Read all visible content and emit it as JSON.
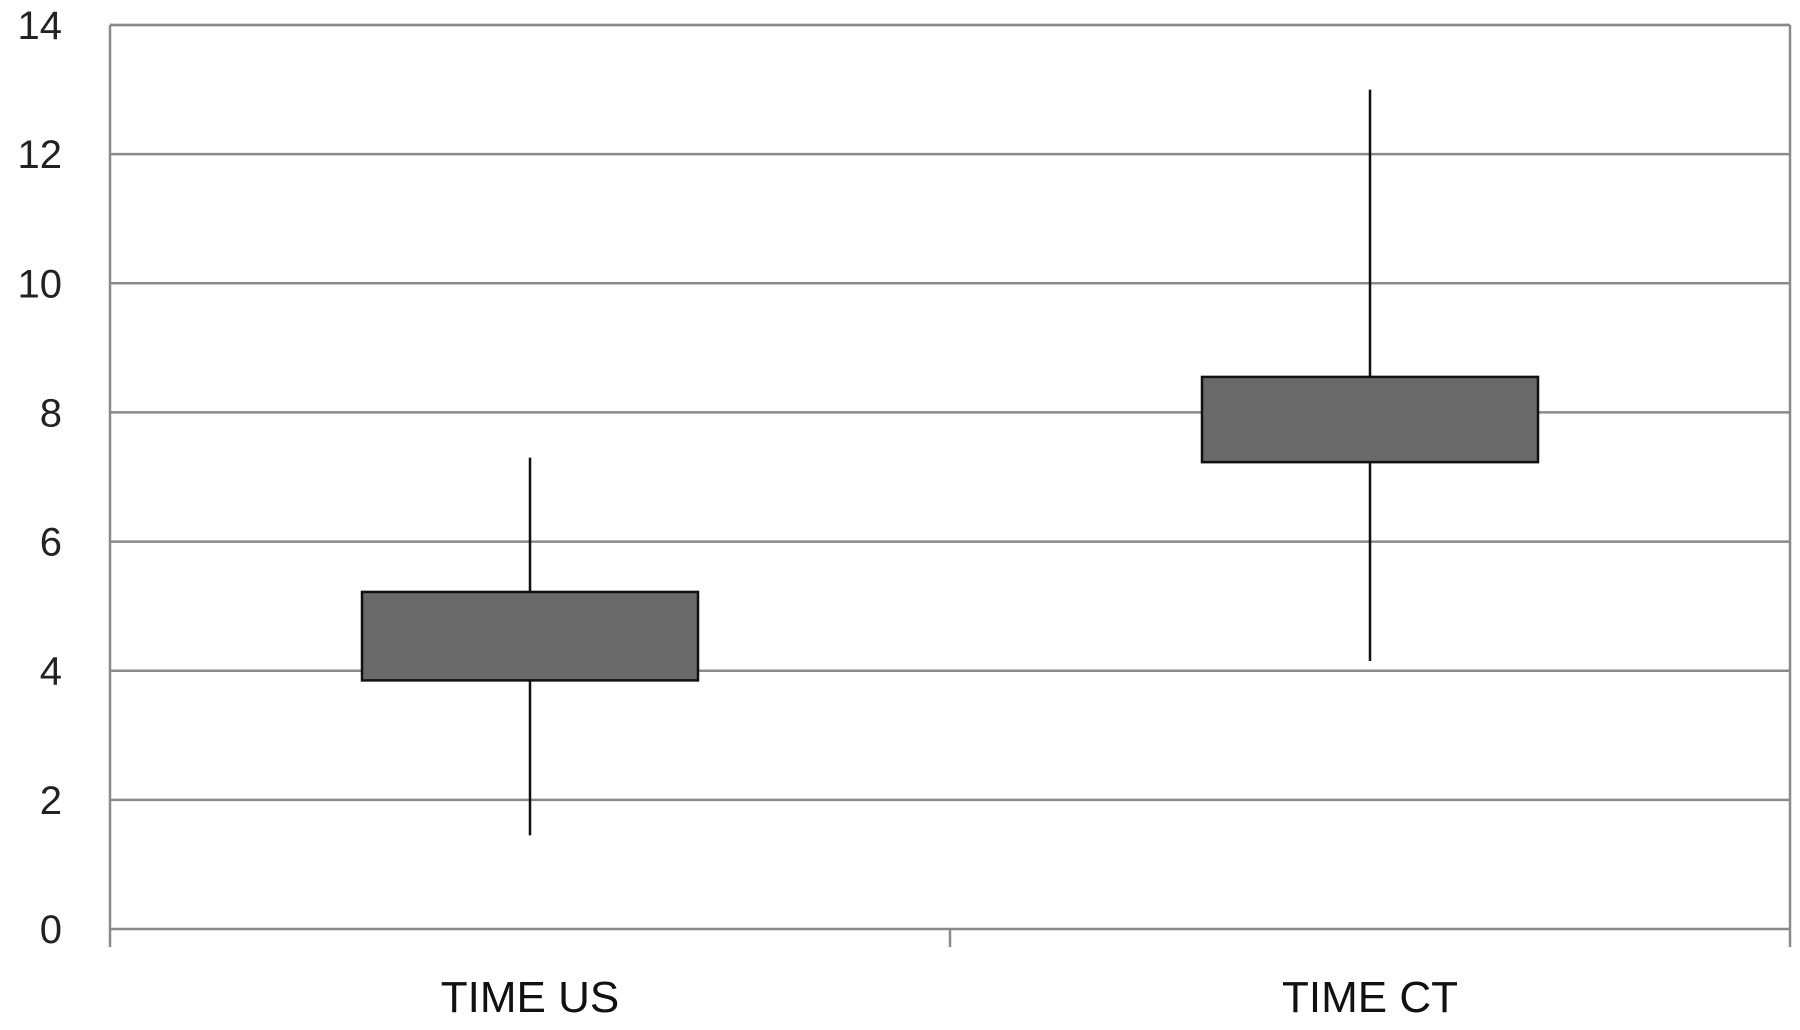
{
  "chart_data": {
    "type": "box",
    "title": "",
    "xlabel": "",
    "ylabel": "",
    "ylim": [
      0,
      14
    ],
    "yticks": [
      0,
      2,
      4,
      6,
      8,
      10,
      12,
      14
    ],
    "grid": true,
    "legend": "none",
    "categories": [
      "TIME US",
      "TIME CT"
    ],
    "boxes": [
      {
        "category": "TIME US",
        "min": 1.45,
        "q1": 3.85,
        "q3": 5.22,
        "max": 7.3
      },
      {
        "category": "TIME CT",
        "min": 4.15,
        "q1": 7.23,
        "q3": 8.55,
        "max": 13.0
      }
    ],
    "colors": {
      "box_fill": "#696969",
      "box_stroke": "#111111",
      "whisker": "#111111",
      "grid": "#8a8a8a",
      "axis": "#8a8a8a"
    }
  }
}
